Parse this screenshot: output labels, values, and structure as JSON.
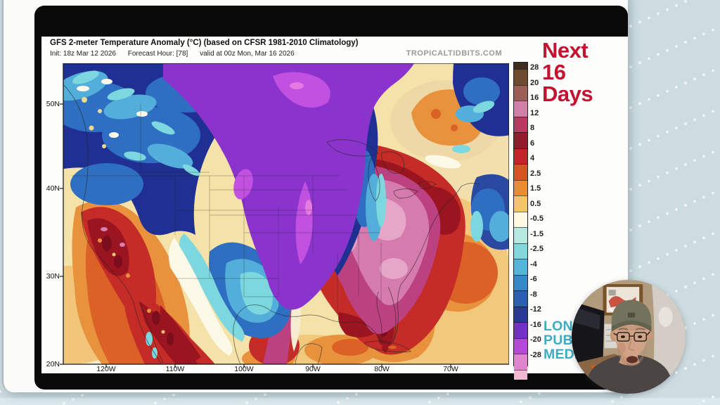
{
  "video": {
    "map_graphic": {
      "title": "GFS 2-meter Temperature Anomaly (°C) (based on CFSR 1981-2010 Climatology)",
      "init": "Init: 18z Mar 12 2026",
      "forecast_hour": "Forecast Hour: [78]",
      "valid": "valid at 00z Mon, Mar 16 2026",
      "watermark": "TROPICALTIDBITS.COM",
      "lat_ticks": [
        "50N",
        "40N",
        "30N",
        "20N"
      ],
      "lon_ticks": [
        "120W",
        "110W",
        "100W",
        "90W",
        "80W",
        "70W"
      ],
      "colorbar_labels": [
        "28",
        "20",
        "16",
        "12",
        "8",
        "6",
        "4",
        "2.5",
        "1.5",
        "0.5",
        "-0.5",
        "-1.5",
        "-2.5",
        "-4",
        "-6",
        "-8",
        "-12",
        "-16",
        "-20",
        "-28"
      ],
      "colorbar_colors": [
        "#3f2a1e",
        "#6e4b2e",
        "#9c5f55",
        "#d07fa8",
        "#b83a60",
        "#911c2c",
        "#c32329",
        "#d85323",
        "#e88d33",
        "#f3c469",
        "#fdf9e3",
        "#b5e9e2",
        "#82d7da",
        "#55b5d9",
        "#3788c6",
        "#2c5fb0",
        "#283a92",
        "#7232c4",
        "#b44ad6",
        "#df85cd",
        "#f2b9d2"
      ]
    },
    "headline": {
      "lines": [
        "Next",
        "16",
        "Days"
      ],
      "color": "#c41230"
    },
    "brand": {
      "lines": [
        "LONG",
        "PUBL",
        "MEDIA"
      ],
      "color": "#3aadc3"
    }
  },
  "chart_data": {
    "type": "heatmap",
    "title": "GFS 2-meter Temperature Anomaly (°C) (based on CFSR 1981-2010 Climatology)",
    "subtitle": "Init: 18z Mar 12 2026  Forecast Hour: [78]  valid at 00z Mon, Mar 16 2026",
    "units": "°C",
    "x_ticks": [
      "120W",
      "110W",
      "100W",
      "90W",
      "80W",
      "70W"
    ],
    "y_ticks": [
      "50N",
      "40N",
      "30N",
      "20N"
    ],
    "colorbar_values": [
      28,
      20,
      16,
      12,
      8,
      6,
      4,
      2.5,
      1.5,
      0.5,
      -0.5,
      -1.5,
      -2.5,
      -4,
      -6,
      -8,
      -12,
      -16,
      -20,
      -28
    ],
    "description": "Cold anomaly (purple/blue, -8 to -20°C) over the northern and central Plains; warm anomaly (pink/red, +8 to +20°C) over the eastern US, California and Mexico; mild warm anomalies (yellow/orange) over surrounding oceans; cold pocket over Atlantic Canada."
  }
}
